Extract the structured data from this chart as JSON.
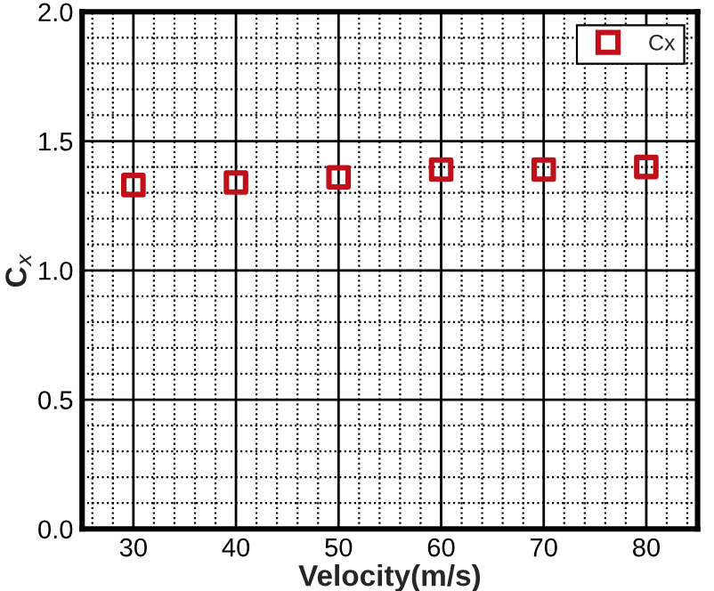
{
  "chart_data": {
    "type": "scatter",
    "xlabel": "Velocity(m/s)",
    "ylabel": "C$_{x}$",
    "x": [
      30,
      40,
      50,
      60,
      70,
      80
    ],
    "series": [
      {
        "name": "Cx",
        "color": "#c0101a",
        "values": [
          1.33,
          1.34,
          1.36,
          1.39,
          1.39,
          1.4
        ]
      }
    ],
    "xlim": [
      25,
      85
    ],
    "ylim": [
      0,
      2
    ],
    "xticks": [
      30,
      40,
      50,
      60,
      70,
      80
    ],
    "yticks": [
      {
        "value": 0,
        "label": "0.0"
      },
      {
        "value": 0.5,
        "label": "0.5"
      },
      {
        "value": 1.0,
        "label": "1.0"
      },
      {
        "value": 1.5,
        "label": "1.5"
      },
      {
        "value": 2.0,
        "label": "2.0"
      }
    ],
    "grid": true,
    "legend": "top right",
    "marker": "square"
  }
}
